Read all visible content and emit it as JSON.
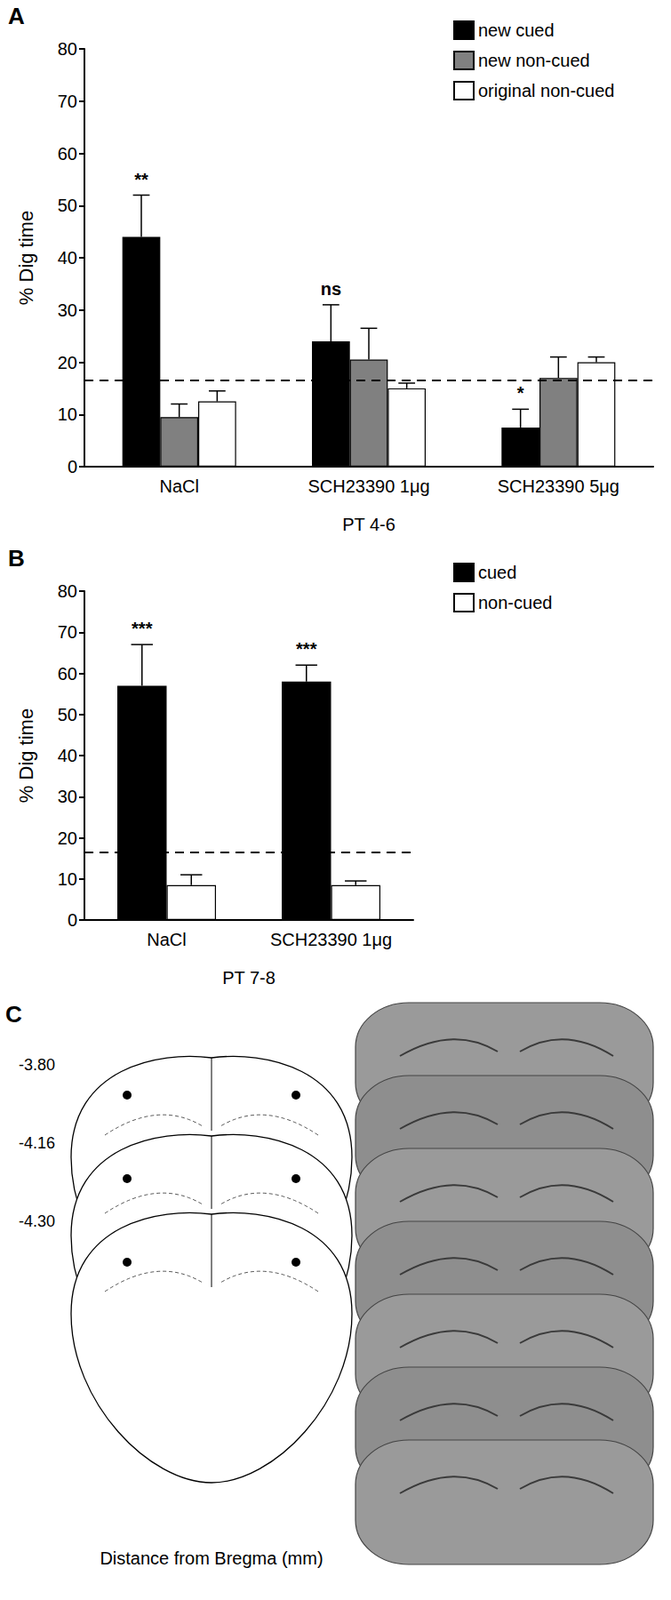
{
  "chart_data": [
    {
      "type": "bar",
      "title": "A",
      "x_label": "PT 4-6",
      "y_label": "% Dig time",
      "categories": [
        "NaCl",
        "SCH23390 1μg",
        "SCH23390 5μg"
      ],
      "series": [
        {
          "name": "new cued",
          "color": "#000000",
          "values": [
            44,
            24,
            7.5
          ],
          "errors": [
            8,
            7,
            3.5
          ],
          "annotations": [
            "**",
            "ns",
            "*"
          ]
        },
        {
          "name": "new non-cued",
          "color": "#808080",
          "values": [
            9.5,
            20.5,
            17
          ],
          "errors": [
            2.5,
            6,
            4
          ]
        },
        {
          "name": "original non-cued",
          "color": "#ffffff",
          "values": [
            12.5,
            15,
            20
          ],
          "errors": [
            2,
            1,
            1
          ]
        }
      ],
      "ylim": [
        0,
        80
      ],
      "yticks": [
        0,
        10,
        20,
        30,
        40,
        50,
        60,
        70,
        80
      ],
      "grid": false,
      "legend": "upper right",
      "reference_line": 16.5
    },
    {
      "type": "bar",
      "title": "B",
      "x_label": "PT 7-8",
      "y_label": "% Dig time",
      "categories": [
        "NaCl",
        "SCH23390 1μg"
      ],
      "series": [
        {
          "name": "cued",
          "color": "#000000",
          "values": [
            57,
            58
          ],
          "errors": [
            10,
            4
          ],
          "annotations": [
            "***",
            "***"
          ]
        },
        {
          "name": "non-cued",
          "color": "#ffffff",
          "values": [
            8.5,
            8.5
          ],
          "errors": [
            2.5,
            1
          ]
        }
      ],
      "ylim": [
        0,
        80
      ],
      "yticks": [
        0,
        10,
        20,
        30,
        40,
        50,
        60,
        70,
        80
      ],
      "grid": false,
      "legend": "upper right",
      "reference_line": 16.5
    }
  ],
  "panel_c": {
    "title": "C",
    "levels": [
      "-3.80",
      "-4.16",
      "-4.30"
    ],
    "axis_label": "Distance from Bregma (mm)"
  }
}
